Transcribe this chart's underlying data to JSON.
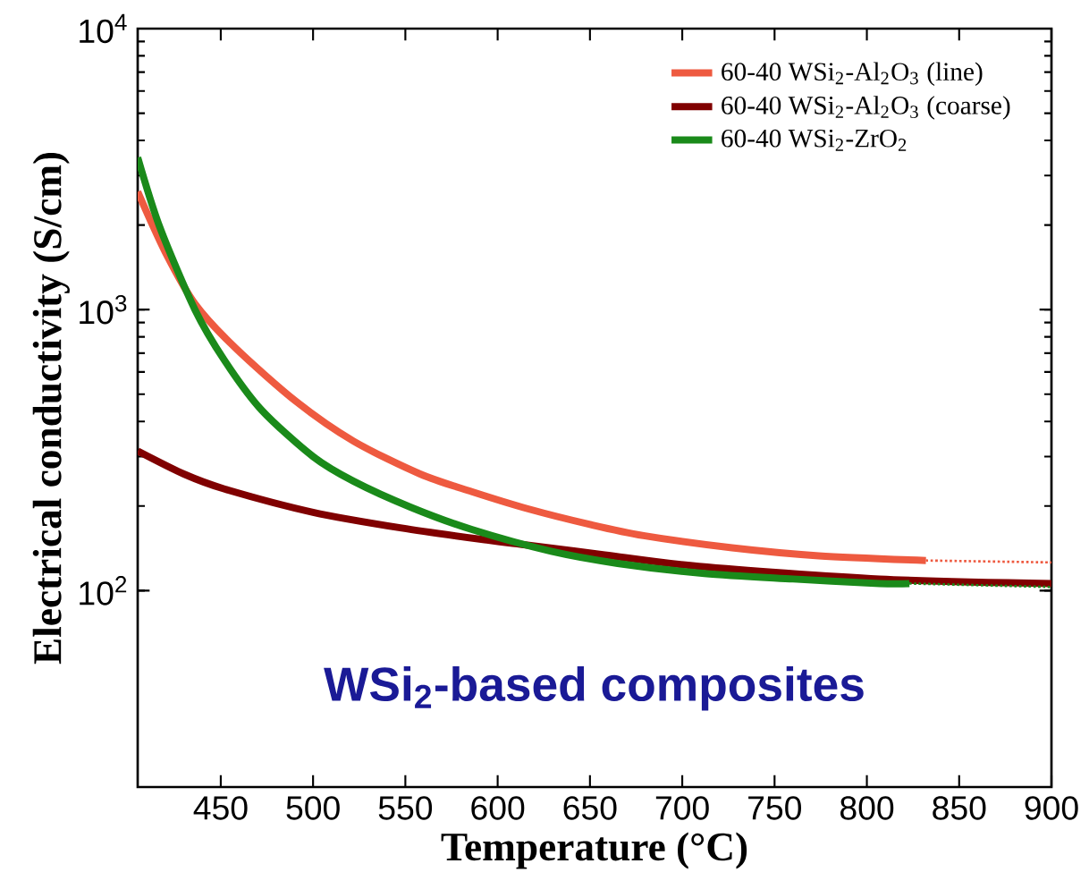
{
  "chart_data": {
    "type": "line",
    "xlabel": "Temperature (°C)",
    "ylabel": "Electrical conductivity (S/cm)",
    "log": "y",
    "xlim": [
      405,
      900
    ],
    "ylim": [
      20,
      10000
    ],
    "xticks": [
      450,
      500,
      550,
      600,
      650,
      700,
      750,
      800,
      850,
      900
    ],
    "yticks": [
      {
        "value": 100,
        "label": "10$^{2}$"
      },
      {
        "value": 1000,
        "label": "10$^{3}$"
      },
      {
        "value": 10000,
        "label": "10$^{4}$"
      }
    ],
    "legend": "top right",
    "grid": false,
    "marker": "none",
    "annotations": [
      "WSi$_{2}$-based composites"
    ],
    "series": [
      {
        "name": "60-40 WSi$_{2}$-Al$_{2}$O$_{3}$ (line)",
        "color": "#ee5a40",
        "x": [
          405,
          420,
          436,
          458,
          491,
          522,
          558,
          586,
          617,
          650,
          679,
          727,
          774,
          832
        ],
        "values": [
          2630,
          1600,
          1050,
          730,
          470,
          340,
          260,
          225,
          195,
          172,
          157,
          142,
          133,
          128
        ]
      },
      {
        "name": "60-40 WSi$_{2}$-Al$_{2}$O$_{3}$ (coarse)",
        "color": "#800000",
        "x": [
          405,
          430,
          452,
          500,
          548,
          595,
          617,
          658,
          709,
          807,
          900
        ],
        "values": [
          314,
          260,
          230,
          190,
          167,
          151,
          145,
          134,
          122,
          110,
          106
        ]
      },
      {
        "name": "60-40 WSi$_{2}$-ZrO$_{2}$",
        "color": "#1a8a1a",
        "x": [
          405,
          417,
          436,
          452,
          472,
          500,
          522,
          553,
          586,
          629,
          665,
          712,
          760,
          807,
          823
        ],
        "values": [
          3480,
          1963,
          1000,
          660,
          440,
          300,
          245,
          198,
          165,
          138,
          125,
          115,
          110,
          106,
          106
        ]
      },
      {
        "color": "#ee5a40",
        "line_style": "dotted",
        "x": [
          832,
          900
        ],
        "values": [
          128,
          126
        ]
      },
      {
        "color": "#1a8a1a",
        "line_style": "dotted",
        "x": [
          823,
          900
        ],
        "values": [
          106,
          103
        ]
      }
    ]
  }
}
